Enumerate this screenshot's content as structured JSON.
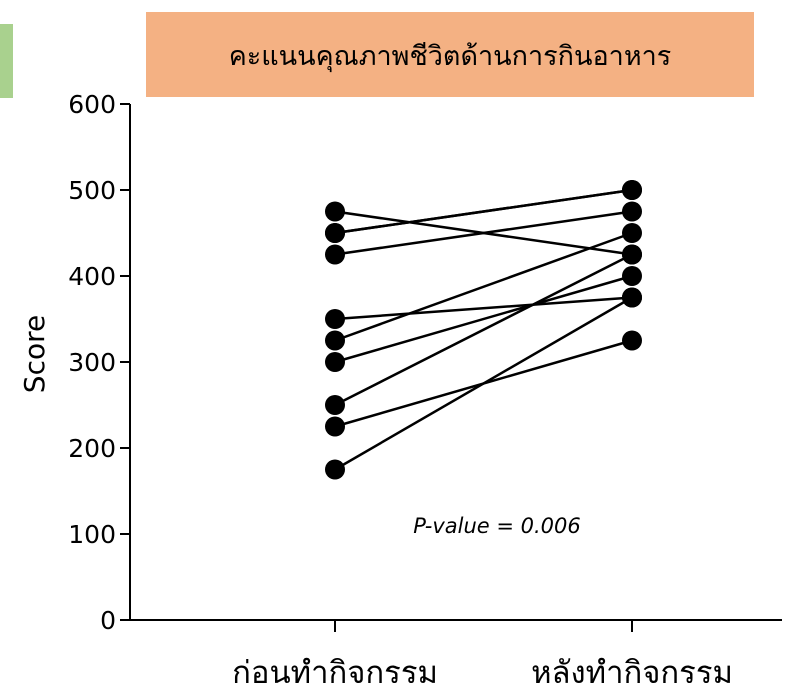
{
  "colors": {
    "title_bg": "#F4B183",
    "side_block": "#A9D18E",
    "ink": "#000000"
  },
  "chart_data": {
    "type": "line",
    "title": "คะแนนคุณภาพชีวิตด้านการกินอาหาร",
    "xlabel": "",
    "ylabel": "Score",
    "categories": [
      "ก่อนทำกิจกรรม",
      "หลังทำกิจกรรม"
    ],
    "ylim": [
      0,
      600
    ],
    "yticks": [
      0,
      100,
      200,
      300,
      400,
      500,
      600
    ],
    "grid": false,
    "legend": "none",
    "annotation": "P-value = 0.006",
    "pairs": [
      [
        475,
        425
      ],
      [
        450,
        500
      ],
      [
        425,
        475
      ],
      [
        350,
        375
      ],
      [
        325,
        450
      ],
      [
        300,
        400
      ],
      [
        250,
        425
      ],
      [
        225,
        325
      ],
      [
        175,
        375
      ],
      [
        450,
        500
      ]
    ]
  }
}
